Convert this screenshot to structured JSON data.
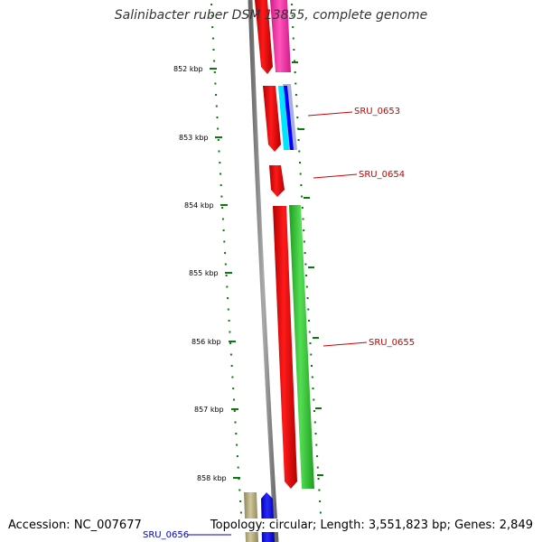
{
  "title": "Salinibacter ruber DSM 13855, complete genome",
  "footer": {
    "accession": "Accession: NC_007677",
    "summary": "Topology: circular; Length: 3,551,823 bp; Genes: 2,849"
  },
  "ruler": {
    "ticks": [
      "852 kbp",
      "853 kbp",
      "854 kbp",
      "855 kbp",
      "856 kbp",
      "857 kbp",
      "858 kbp"
    ],
    "tick_color": "#0a7a0a"
  },
  "genes": [
    {
      "label": "SRU_0653",
      "color": "#cc0000"
    },
    {
      "label": "SRU_0654",
      "color": "#cc0000"
    },
    {
      "label": "SRU_0655",
      "color": "#cc0000"
    },
    {
      "label": "SRU_0656",
      "color": "#0000cc"
    }
  ],
  "colors": {
    "backbone": "#808080",
    "red_feature": "#ff0000",
    "green_feature": "#33cc33",
    "pink_feature": "#ff33aa",
    "blue_feature": "#0000ff",
    "cyan_feature": "#00e5ff",
    "olive_feature": "#b5ad7a",
    "lavender_feature": "#aab0dd"
  }
}
